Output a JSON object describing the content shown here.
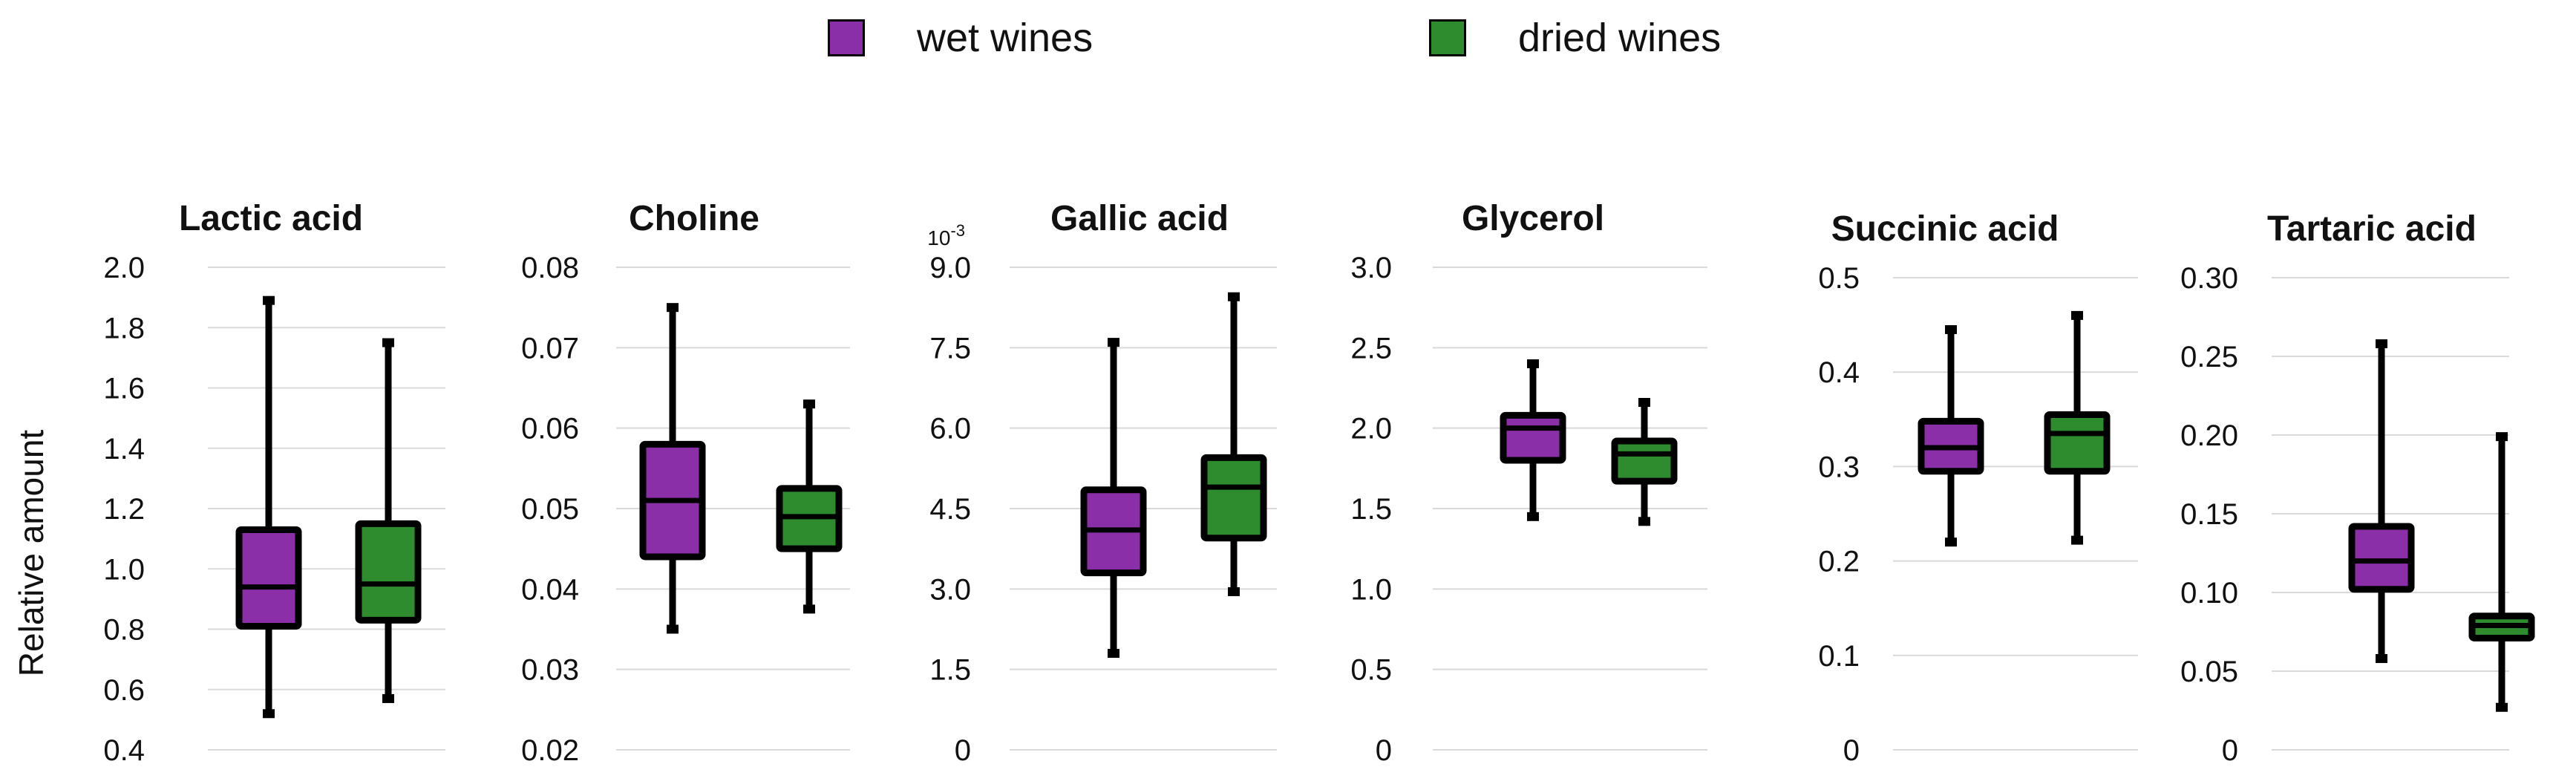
{
  "legend": {
    "series": [
      {
        "name": "wet wines",
        "color": "#8B2FA8"
      },
      {
        "name": "dried wines",
        "color": "#2E8B2E"
      }
    ]
  },
  "y_axis_label": "Relative amount",
  "colors": {
    "wet": "#8B2FA8",
    "dried": "#2E8B2E",
    "outline": "#000000",
    "grid": "#d9d9d9"
  },
  "chart_data": [
    {
      "type": "box",
      "title": "Lactic acid",
      "exponent": "",
      "ylim": [
        0.4,
        2.0
      ],
      "ticks": [
        0.4,
        0.6,
        0.8,
        1.0,
        1.2,
        1.4,
        1.6,
        1.8,
        2.0
      ],
      "tick_labels": [
        "0.4",
        "0.6",
        "0.8",
        "1.0",
        "1.2",
        "1.4",
        "1.6",
        "1.8",
        "2.0"
      ],
      "series": [
        {
          "name": "wet wines",
          "min": 0.52,
          "q1": 0.81,
          "median": 0.94,
          "q3": 1.13,
          "max": 1.89
        },
        {
          "name": "dried wines",
          "min": 0.57,
          "q1": 0.83,
          "median": 0.95,
          "q3": 1.15,
          "max": 1.75
        }
      ]
    },
    {
      "type": "box",
      "title": "Choline",
      "exponent": "",
      "ylim": [
        0.02,
        0.08
      ],
      "ticks": [
        0.02,
        0.03,
        0.04,
        0.05,
        0.06,
        0.07,
        0.08
      ],
      "tick_labels": [
        "0.02",
        "0.03",
        "0.04",
        "0.05",
        "0.06",
        "0.07",
        "0.08"
      ],
      "series": [
        {
          "name": "wet wines",
          "min": 0.035,
          "q1": 0.044,
          "median": 0.051,
          "q3": 0.058,
          "max": 0.075
        },
        {
          "name": "dried wines",
          "min": 0.0375,
          "q1": 0.045,
          "median": 0.049,
          "q3": 0.0525,
          "max": 0.063
        }
      ]
    },
    {
      "type": "box",
      "title": "Gallic acid",
      "exponent": "10-3",
      "ylim": [
        0,
        9.0
      ],
      "ticks": [
        0,
        1.5,
        3.0,
        4.5,
        6.0,
        7.5,
        9.0
      ],
      "tick_labels": [
        "0",
        "1.5",
        "3.0",
        "4.5",
        "6.0",
        "7.5",
        "9.0"
      ],
      "series": [
        {
          "name": "wet wines",
          "min": 1.8,
          "q1": 3.3,
          "median": 4.1,
          "q3": 4.85,
          "max": 7.6
        },
        {
          "name": "dried wines",
          "min": 2.95,
          "q1": 3.95,
          "median": 4.9,
          "q3": 5.45,
          "max": 8.45
        }
      ]
    },
    {
      "type": "box",
      "title": "Glycerol",
      "exponent": "",
      "ylim": [
        0,
        3.0
      ],
      "ticks": [
        0,
        0.5,
        1.0,
        1.5,
        2.0,
        2.5,
        3.0
      ],
      "tick_labels": [
        "0",
        "0.5",
        "1.0",
        "1.5",
        "2.0",
        "2.5",
        "3.0"
      ],
      "series": [
        {
          "name": "wet wines",
          "min": 1.45,
          "q1": 1.8,
          "median": 2.0,
          "q3": 2.08,
          "max": 2.4
        },
        {
          "name": "dried wines",
          "min": 1.42,
          "q1": 1.67,
          "median": 1.84,
          "q3": 1.92,
          "max": 2.16
        }
      ]
    },
    {
      "type": "box",
      "title": "Succinic acid",
      "exponent": "",
      "ylim": [
        0,
        0.5
      ],
      "ticks": [
        0,
        0.1,
        0.2,
        0.3,
        0.4,
        0.5
      ],
      "tick_labels": [
        "0",
        "0.1",
        "0.2",
        "0.3",
        "0.4",
        "0.5"
      ],
      "series": [
        {
          "name": "wet wines",
          "min": 0.22,
          "q1": 0.295,
          "median": 0.32,
          "q3": 0.348,
          "max": 0.445
        },
        {
          "name": "dried wines",
          "min": 0.222,
          "q1": 0.295,
          "median": 0.335,
          "q3": 0.355,
          "max": 0.46
        }
      ]
    },
    {
      "type": "box",
      "title": "Tartaric acid",
      "exponent": "",
      "ylim": [
        0,
        0.3
      ],
      "ticks": [
        0,
        0.05,
        0.1,
        0.15,
        0.2,
        0.25,
        0.3
      ],
      "tick_labels": [
        "0",
        "0.05",
        "0.10",
        "0.15",
        "0.20",
        "0.25",
        "0.30"
      ],
      "series": [
        {
          "name": "wet wines",
          "min": 0.058,
          "q1": 0.102,
          "median": 0.12,
          "q3": 0.142,
          "max": 0.258
        },
        {
          "name": "dried wines",
          "min": 0.027,
          "q1": 0.071,
          "median": 0.079,
          "q3": 0.085,
          "max": 0.199
        }
      ]
    }
  ]
}
